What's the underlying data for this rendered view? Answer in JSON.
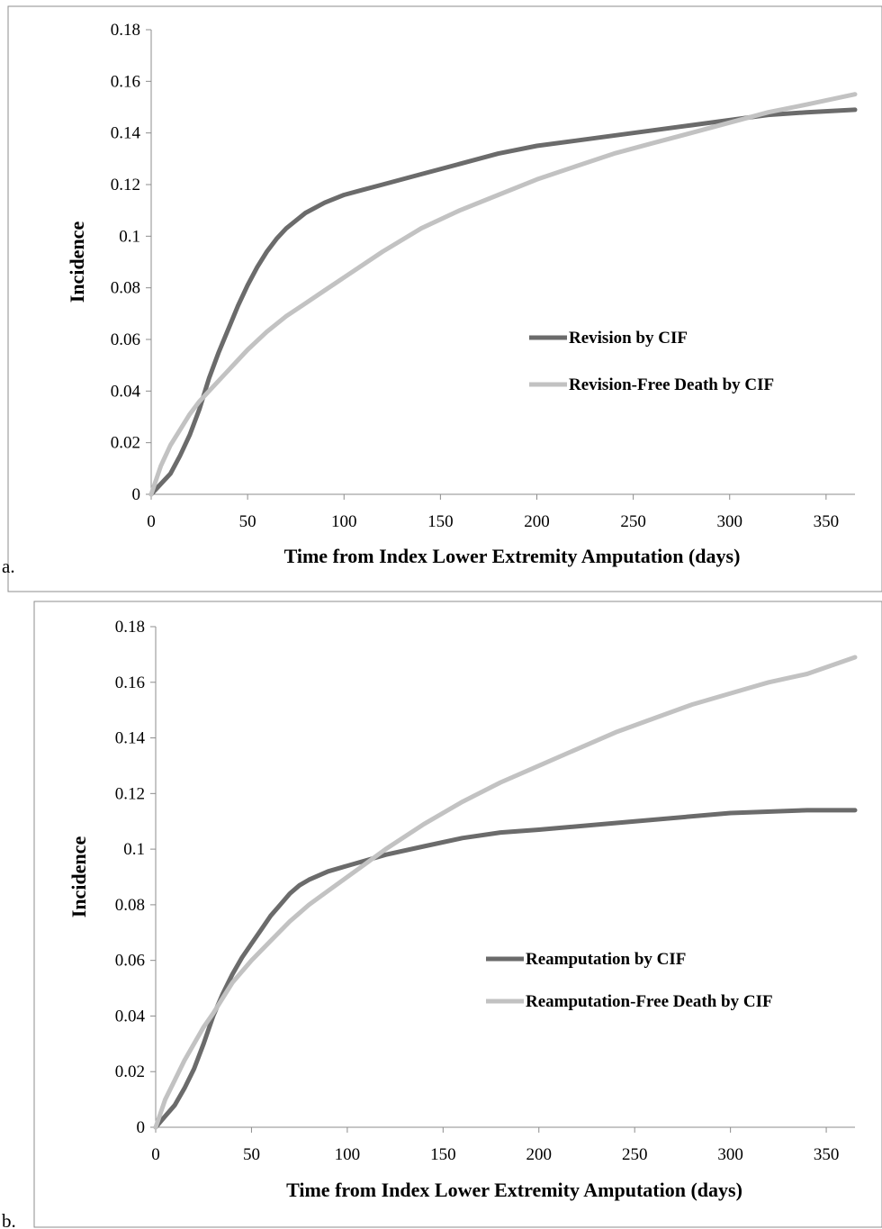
{
  "panels": [
    {
      "label": "a."
    },
    {
      "label": "b."
    }
  ],
  "chart_data": [
    {
      "type": "line",
      "title": "",
      "xlabel": "Time from Index Lower Extremity Amputation (days)",
      "ylabel": "Incidence",
      "xlim": [
        0,
        365
      ],
      "ylim": [
        0,
        0.18
      ],
      "xticks": [
        0,
        50,
        100,
        150,
        200,
        250,
        300,
        350
      ],
      "xtick_labels": [
        "0",
        "50",
        "100",
        "150",
        "200",
        "250",
        "300",
        "350"
      ],
      "yticks": [
        0,
        0.02,
        0.04,
        0.06,
        0.08,
        0.1,
        0.12,
        0.14,
        0.16,
        0.18
      ],
      "ytick_labels": [
        "0",
        "0.02",
        "0.04",
        "0.06",
        "0.08",
        "0.1",
        "0.12",
        "0.14",
        "0.16",
        "0.18"
      ],
      "grid": false,
      "legend_position": "right",
      "series": [
        {
          "name": "Revision by CIF",
          "color": "#6b6b6b",
          "x": [
            0,
            5,
            10,
            15,
            20,
            25,
            30,
            35,
            40,
            45,
            50,
            55,
            60,
            65,
            70,
            75,
            80,
            90,
            100,
            110,
            120,
            140,
            160,
            180,
            200,
            220,
            250,
            280,
            300,
            320,
            340,
            365
          ],
          "y": [
            0,
            0.004,
            0.008,
            0.015,
            0.023,
            0.033,
            0.045,
            0.055,
            0.064,
            0.073,
            0.081,
            0.088,
            0.094,
            0.099,
            0.103,
            0.106,
            0.109,
            0.113,
            0.116,
            0.118,
            0.12,
            0.124,
            0.128,
            0.132,
            0.135,
            0.137,
            0.14,
            0.143,
            0.145,
            0.147,
            0.148,
            0.149
          ]
        },
        {
          "name": "Revision-Free Death by CIF",
          "color": "#c2c2c2",
          "x": [
            0,
            5,
            10,
            15,
            20,
            25,
            30,
            40,
            50,
            60,
            70,
            80,
            90,
            100,
            120,
            140,
            160,
            180,
            200,
            220,
            240,
            260,
            280,
            300,
            320,
            340,
            365
          ],
          "y": [
            0,
            0.011,
            0.019,
            0.025,
            0.031,
            0.036,
            0.04,
            0.048,
            0.056,
            0.063,
            0.069,
            0.074,
            0.079,
            0.084,
            0.094,
            0.103,
            0.11,
            0.116,
            0.122,
            0.127,
            0.132,
            0.136,
            0.14,
            0.144,
            0.148,
            0.151,
            0.155
          ]
        }
      ]
    },
    {
      "type": "line",
      "title": "",
      "xlabel": "Time from Index Lower Extremity Amputation (days)",
      "ylabel": "Incidence",
      "xlim": [
        0,
        365
      ],
      "ylim": [
        0,
        0.18
      ],
      "xticks": [
        0,
        50,
        100,
        150,
        200,
        250,
        300,
        350
      ],
      "xtick_labels": [
        "0",
        "50",
        "100",
        "150",
        "200",
        "250",
        "300",
        "350"
      ],
      "yticks": [
        0,
        0.02,
        0.04,
        0.06,
        0.08,
        0.1,
        0.12,
        0.14,
        0.16,
        0.18
      ],
      "ytick_labels": [
        "0",
        "0.02",
        "0.04",
        "0.06",
        "0.08",
        "0.1",
        "0.12",
        "0.14",
        "0.16",
        "0.18"
      ],
      "grid": false,
      "legend_position": "right",
      "series": [
        {
          "name": "Reamputation by CIF",
          "color": "#6b6b6b",
          "x": [
            0,
            5,
            10,
            15,
            20,
            25,
            30,
            35,
            40,
            45,
            50,
            55,
            60,
            65,
            70,
            75,
            80,
            90,
            100,
            110,
            120,
            140,
            160,
            180,
            200,
            250,
            300,
            340,
            365
          ],
          "y": [
            0,
            0.004,
            0.008,
            0.014,
            0.021,
            0.03,
            0.04,
            0.048,
            0.055,
            0.061,
            0.066,
            0.071,
            0.076,
            0.08,
            0.084,
            0.087,
            0.089,
            0.092,
            0.094,
            0.096,
            0.098,
            0.101,
            0.104,
            0.106,
            0.107,
            0.11,
            0.113,
            0.114,
            0.114
          ]
        },
        {
          "name": "Reamputation-Free Death by CIF",
          "color": "#c2c2c2",
          "x": [
            0,
            5,
            10,
            15,
            20,
            25,
            30,
            40,
            50,
            60,
            70,
            80,
            90,
            100,
            110,
            120,
            140,
            160,
            180,
            200,
            220,
            240,
            260,
            280,
            300,
            320,
            340,
            365
          ],
          "y": [
            0,
            0.01,
            0.017,
            0.024,
            0.03,
            0.036,
            0.041,
            0.052,
            0.06,
            0.067,
            0.074,
            0.08,
            0.085,
            0.09,
            0.095,
            0.1,
            0.109,
            0.117,
            0.124,
            0.13,
            0.136,
            0.142,
            0.147,
            0.152,
            0.156,
            0.16,
            0.163,
            0.169
          ]
        }
      ]
    }
  ]
}
